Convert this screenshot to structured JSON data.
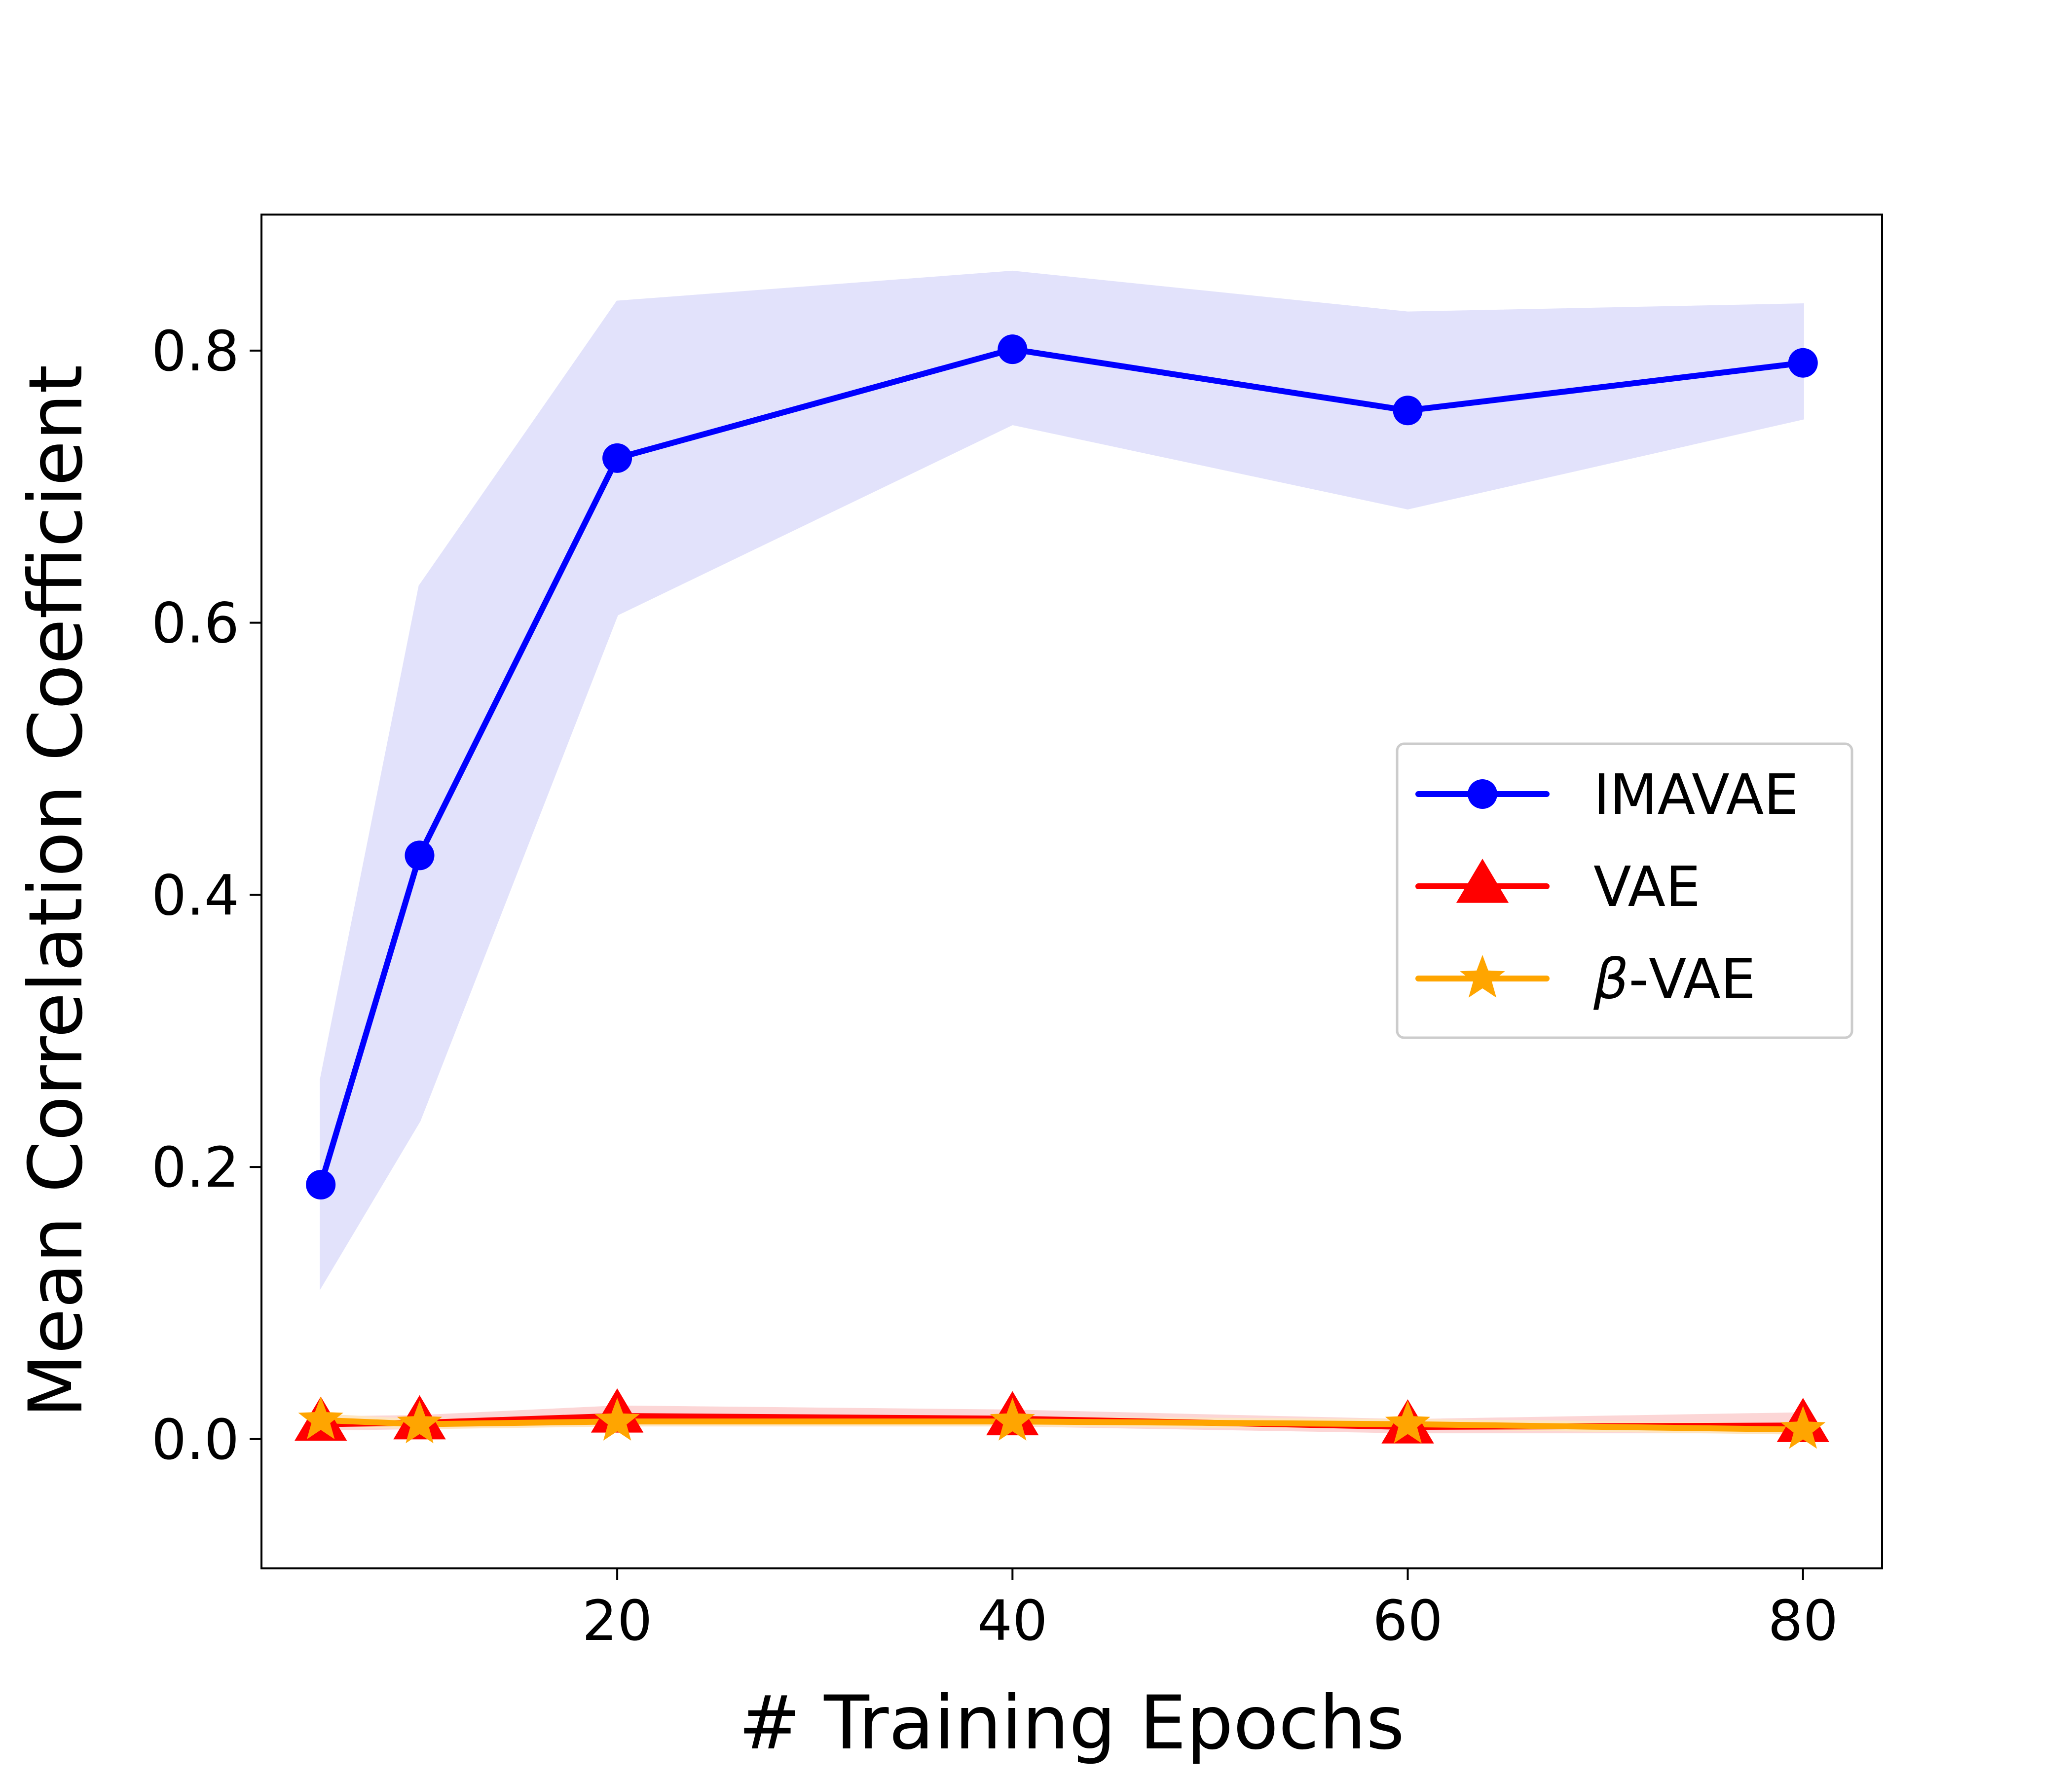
{
  "chart_data": {
    "type": "line",
    "title": "",
    "xlabel": "# Training Epochs",
    "ylabel": "Mean Correlation Coefficient",
    "xlim": [
      2,
      84
    ],
    "ylim": [
      -0.095,
      0.9
    ],
    "xticks": [
      20,
      40,
      60,
      80
    ],
    "xtick_labels": [
      "20",
      "40",
      "60",
      "80"
    ],
    "yticks": [
      0.0,
      0.2,
      0.4,
      0.6,
      0.8
    ],
    "ytick_labels": [
      "0.0",
      "0.2",
      "0.4",
      "0.6",
      "0.8"
    ],
    "grid": false,
    "legend_position": "center-right",
    "x": [
      5,
      10,
      20,
      40,
      60,
      80
    ],
    "series": [
      {
        "name": "IMAVAE",
        "color": "#0000ff",
        "band_color": "#e2e2fb",
        "marker": "circle",
        "values": [
          0.187,
          0.429,
          0.721,
          0.801,
          0.756,
          0.791
        ],
        "lower": [
          0.112,
          0.234,
          0.606,
          0.746,
          0.684,
          0.75
        ],
        "upper": [
          0.264,
          0.627,
          0.836,
          0.858,
          0.828,
          0.834
        ]
      },
      {
        "name": "VAE",
        "color": "#ff0000",
        "band_color": "#fcd6d6",
        "marker": "triangle",
        "values": [
          0.011,
          0.012,
          0.017,
          0.015,
          0.009,
          0.01
        ],
        "lower": [
          0.007,
          0.008,
          0.012,
          0.01,
          0.005,
          0.005
        ],
        "upper": [
          0.016,
          0.017,
          0.024,
          0.021,
          0.014,
          0.019
        ]
      },
      {
        "name": "VAE",
        "name_prefix": "β",
        "color": "#ffa500",
        "band_color": "#fde6c4",
        "marker": "star",
        "values": [
          0.014,
          0.011,
          0.013,
          0.013,
          0.011,
          0.007
        ],
        "lower": [
          0.01,
          0.008,
          0.01,
          0.01,
          0.008,
          0.004
        ],
        "upper": [
          0.018,
          0.014,
          0.017,
          0.016,
          0.014,
          0.011
        ]
      }
    ]
  }
}
